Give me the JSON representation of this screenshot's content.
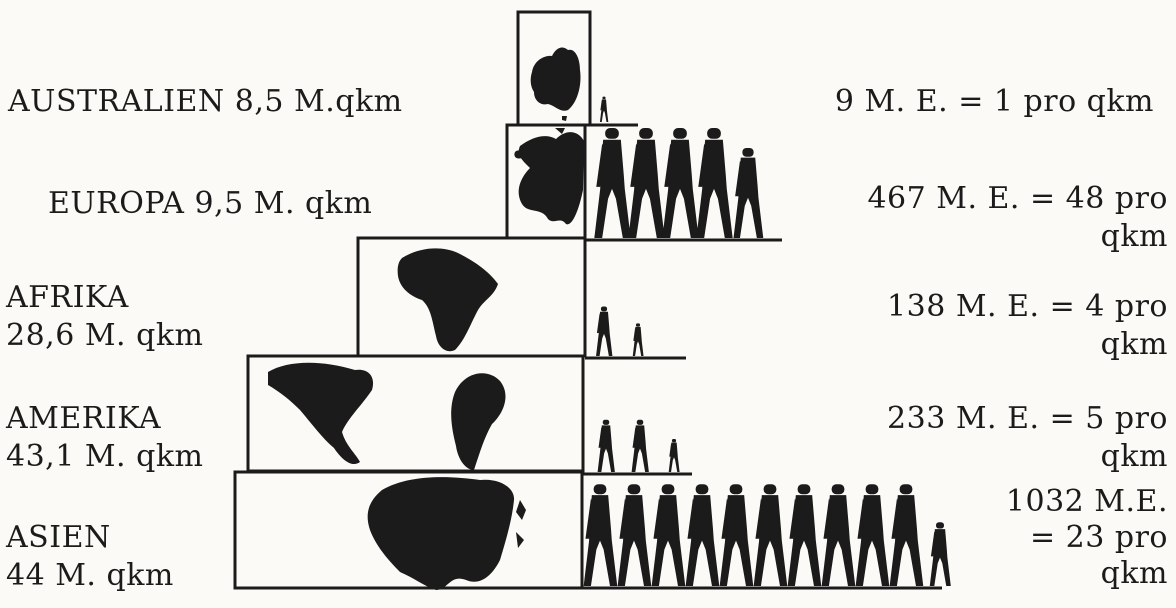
{
  "continents": [
    {
      "id": "australien",
      "name": "AUSTRALIEN",
      "area_text": "8,5 M.qkm",
      "area_mkm2": 8.5,
      "population_text": "9 M. E. = 1 pro qkm",
      "population_millions": 9,
      "density_per_km2": 1
    },
    {
      "id": "europa",
      "name": "EUROPA",
      "area_text": "9,5 M. qkm",
      "area_mkm2": 9.5,
      "population_text_1": "467 M. E. = 48 pro",
      "population_text_2": "qkm",
      "population_millions": 467,
      "density_per_km2": 48
    },
    {
      "id": "afrika",
      "name": "AFRIKA",
      "area_text": "28,6 M. qkm",
      "area_mkm2": 28.6,
      "population_text_1": "138 M. E. = 4 pro",
      "population_text_2": "qkm",
      "population_millions": 138,
      "density_per_km2": 4
    },
    {
      "id": "amerika",
      "name": "AMERIKA",
      "area_text": "43,1 M. qkm",
      "area_mkm2": 43.1,
      "population_text_1": "233 M. E. = 5 pro",
      "population_text_2": "qkm",
      "population_millions": 233,
      "density_per_km2": 5
    },
    {
      "id": "asien",
      "name": "ASIEN",
      "area_text": "44 M. qkm",
      "area_mkm2": 44,
      "population_text_1": "1032 M.E.",
      "population_text_2": "= 23 pro",
      "population_text_3": "qkm",
      "population_millions": 1032,
      "density_per_km2": 23
    }
  ],
  "icons": {
    "population": "walking-person-icon",
    "map": "continent-silhouette-icon"
  },
  "colors": {
    "ink": "#1b1b1b",
    "paper": "#fbfaf6"
  }
}
